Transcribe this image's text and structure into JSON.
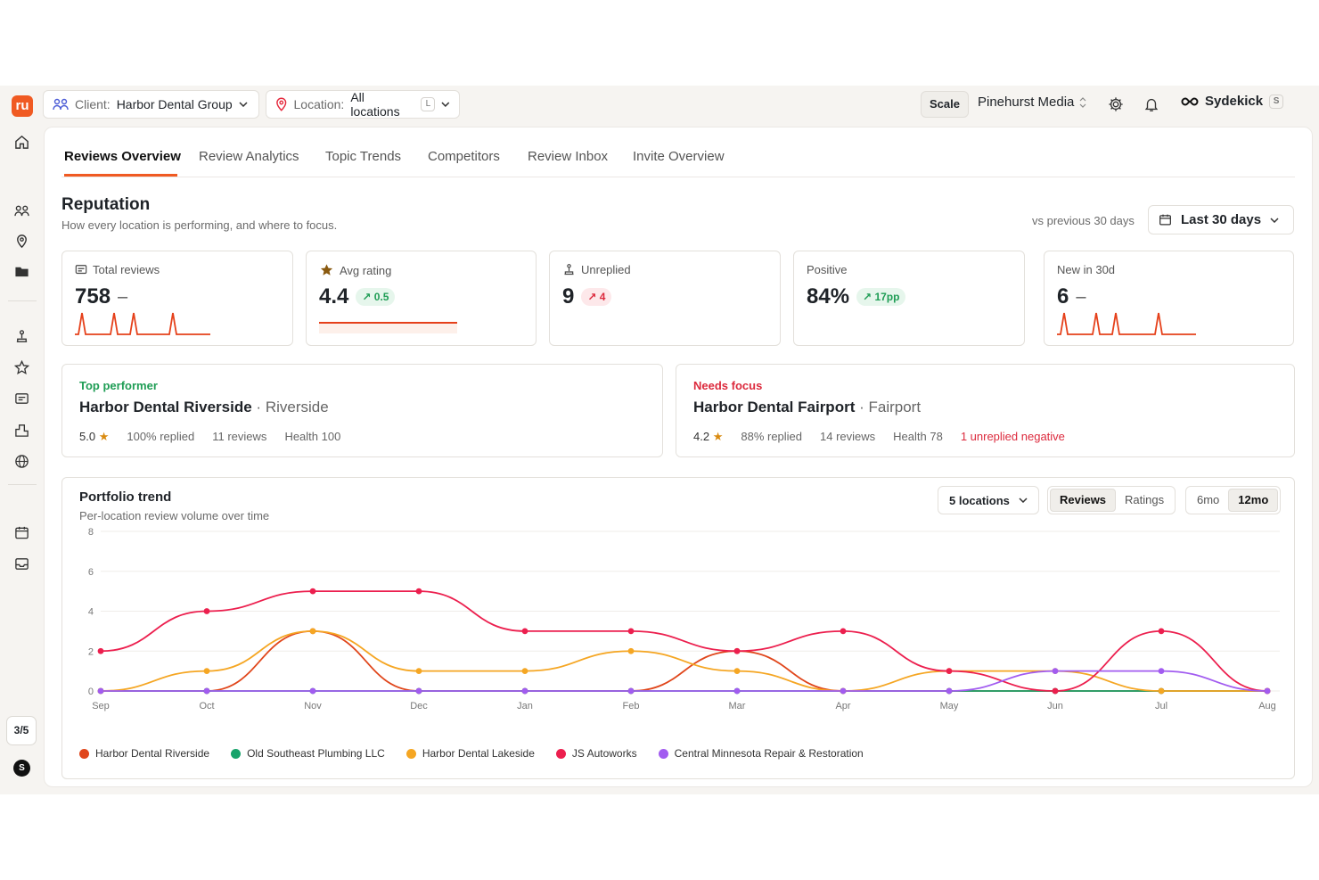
{
  "topbar": {
    "logo": "ru",
    "client_label": "Client:",
    "client_value": "Harbor Dental Group",
    "location_label": "Location:",
    "location_value": "All locations",
    "location_kbd": "L",
    "scale": "Scale",
    "workspace": "Pinehurst Media",
    "sydekick": "Sydekick",
    "sydekick_kbd": "S"
  },
  "sidebar": {
    "count": "3/5",
    "avatar": "S"
  },
  "tabs": [
    {
      "label": "Reviews Overview"
    },
    {
      "label": "Review Analytics"
    },
    {
      "label": "Topic Trends"
    },
    {
      "label": "Competitors"
    },
    {
      "label": "Review Inbox"
    },
    {
      "label": "Invite Overview"
    }
  ],
  "header": {
    "title": "Reputation",
    "subtitle": "How every location is performing, and where to focus.",
    "vs": "vs previous 30 days",
    "range": "Last 30 days"
  },
  "kpis": [
    {
      "label": "Total reviews",
      "value": "758",
      "delta": "–"
    },
    {
      "label": "Avg rating",
      "value": "4.4",
      "delta": "0.5"
    },
    {
      "label": "Unreplied",
      "value": "9",
      "delta": "4"
    },
    {
      "label": "Positive",
      "value": "84%",
      "delta": "17pp"
    },
    {
      "label": "New in 30d",
      "value": "6",
      "delta": "–"
    }
  ],
  "top_performer": {
    "tag": "Top performer",
    "name": "Harbor Dental Riverside",
    "location": "Riverside",
    "rating": "5.0",
    "replied": "100% replied",
    "reviews": "11 reviews",
    "health": "Health 100"
  },
  "needs_focus": {
    "tag": "Needs focus",
    "name": "Harbor Dental Fairport",
    "location": "Fairport",
    "rating": "4.2",
    "replied": "88% replied",
    "reviews": "14 reviews",
    "health": "Health 78",
    "alert": "1 unreplied negative"
  },
  "trend": {
    "title": "Portfolio trend",
    "subtitle": "Per-location review volume over time",
    "locations": "5 locations",
    "metric_reviews": "Reviews",
    "metric_ratings": "Ratings",
    "range_6": "6mo",
    "range_12": "12mo"
  },
  "colors": {
    "accent": "#f05a22",
    "up": "#1f9d55",
    "down": "#dc2a3d"
  },
  "chart_data": {
    "type": "line",
    "x": [
      "Sep",
      "Oct",
      "Nov",
      "Dec",
      "Jan",
      "Feb",
      "Mar",
      "Apr",
      "May",
      "Jun",
      "Jul",
      "Aug"
    ],
    "yticks": [
      0,
      2,
      4,
      6,
      8
    ],
    "ylim": [
      0,
      8
    ],
    "series": [
      {
        "name": "Harbor Dental Riverside",
        "color": "#e0461b",
        "values": [
          0,
          0,
          3,
          0,
          0,
          0,
          2,
          0,
          0,
          0,
          0,
          0
        ]
      },
      {
        "name": "Old Southeast Plumbing LLC",
        "color": "#18a36b",
        "values": [
          0,
          0,
          0,
          0,
          0,
          0,
          0,
          0,
          0,
          0,
          0,
          0
        ]
      },
      {
        "name": "Harbor Dental Lakeside",
        "color": "#f5a623",
        "values": [
          0,
          1,
          3,
          1,
          1,
          2,
          1,
          0,
          1,
          1,
          0,
          0
        ]
      },
      {
        "name": "JS Autoworks",
        "color": "#ec1f4e",
        "values": [
          2,
          4,
          5,
          5,
          3,
          3,
          2,
          3,
          1,
          0,
          3,
          0
        ]
      },
      {
        "name": "Central Minnesota Repair & Restoration",
        "color": "#a25cf0",
        "values": [
          0,
          0,
          0,
          0,
          0,
          0,
          0,
          0,
          0,
          1,
          1,
          0
        ]
      }
    ]
  }
}
